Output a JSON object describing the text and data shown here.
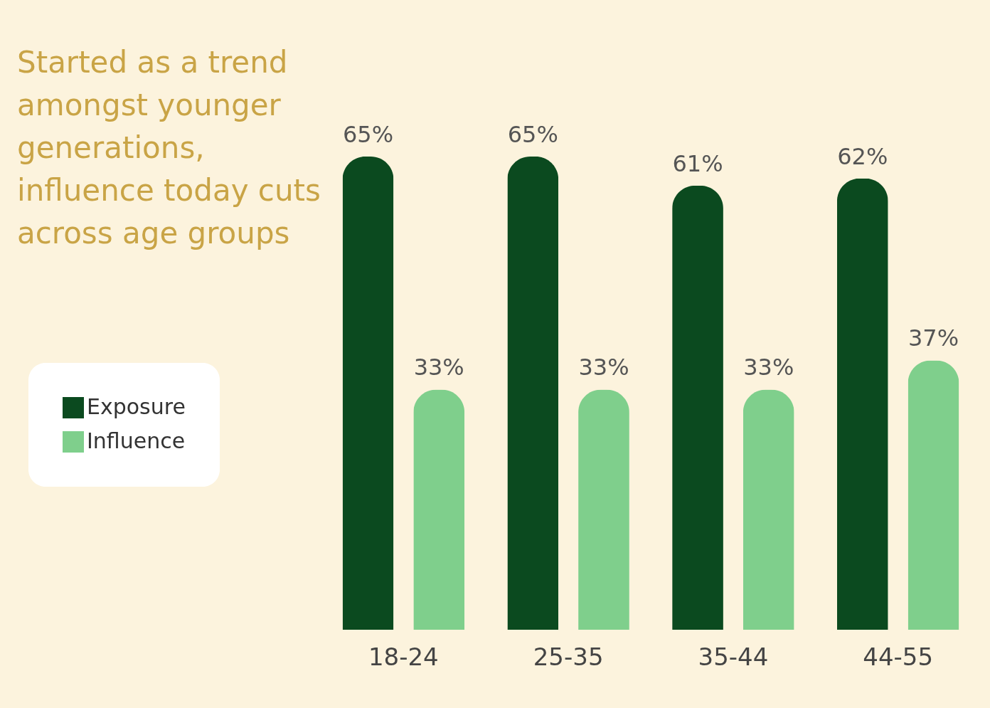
{
  "chart_data": {
    "type": "bar",
    "title": "Started as a trend amongst younger generations, influence today cuts across age groups",
    "categories": [
      "18-24",
      "25-35",
      "35-44",
      "44-55"
    ],
    "series": [
      {
        "name": "Exposure",
        "color": "#0b4a1f",
        "values": [
          65,
          65,
          61,
          62
        ],
        "value_labels": [
          "65%",
          "65%",
          "61%",
          "62%"
        ]
      },
      {
        "name": "Influence",
        "color": "#7fcf8c",
        "values": [
          33,
          33,
          33,
          37
        ],
        "value_labels": [
          "33%",
          "33%",
          "33%",
          "37%"
        ]
      }
    ],
    "legend": "left",
    "grid": false
  }
}
